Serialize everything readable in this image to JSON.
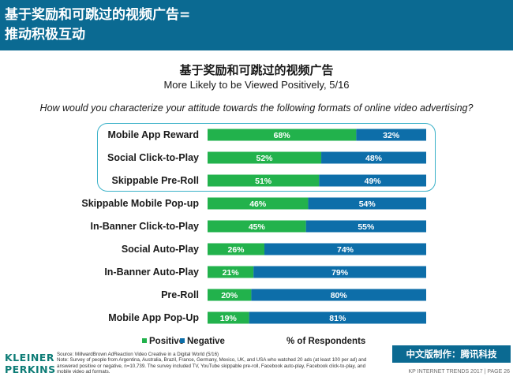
{
  "header": {
    "line1": "基于奖励和可跳过的视频广告=",
    "line2": "推动积极互动"
  },
  "colors": {
    "positive": "#22b24c",
    "negative": "#0d6ea9",
    "header_bg": "#0b6a92",
    "highlight": "#3ab1c8"
  },
  "chart_data": {
    "type": "bar",
    "orientation": "horizontal",
    "stacked": true,
    "title": "基于奖励和可跳过的视频广告",
    "subtitle": "More Likely to be Viewed Positively, 5/16",
    "question": "How would you characterize your attitude towards the following formats of online video advertising?",
    "xlabel": "% of Respondents",
    "xlim": [
      0,
      100
    ],
    "categories": [
      "Mobile App Reward",
      "Social Click-to-Play",
      "Skippable Pre-Roll",
      "Skippable Mobile Pop-up",
      "In-Banner Click-to-Play",
      "Social Auto-Play",
      "In-Banner Auto-Play",
      "Pre-Roll",
      "Mobile App Pop-Up"
    ],
    "series": [
      {
        "name": "Positive",
        "values": [
          68,
          52,
          51,
          46,
          45,
          26,
          21,
          20,
          19
        ],
        "labels": [
          "68%",
          "52%",
          "51%",
          "46%",
          "45%",
          "26%",
          "21%",
          "20%",
          "19%"
        ]
      },
      {
        "name": "Negative",
        "values": [
          32,
          48,
          49,
          54,
          55,
          74,
          79,
          80,
          81
        ],
        "labels": [
          "32%",
          "48%",
          "49%",
          "54%",
          "55%",
          "74%",
          "79%",
          "80%",
          "81%"
        ]
      }
    ],
    "legend": {
      "position": "bottom"
    },
    "grid": false
  },
  "footer": {
    "logo_line1": "KLEINER",
    "logo_line2": "PERKINS",
    "source_lines": [
      "Source: MillwardBrown AdReaction Video Creative in a Digital World (5/16)",
      "Note: Survey of people from Argentina, Australia, Brazil, France, Germany, Mexico, UK, and USA who watched 20 ads (at least 100 per ad) and",
      "answered positive or negative, n=10,739. The survey included TV, YouTube skippable pre-roll, Facebook auto-play, Facebook click-to-play, and",
      "mobile video ad formats."
    ],
    "badge": "中文版制作：腾讯科技",
    "right_text": "KP INTERNET TRENDS 2017  |  PAGE 26"
  }
}
